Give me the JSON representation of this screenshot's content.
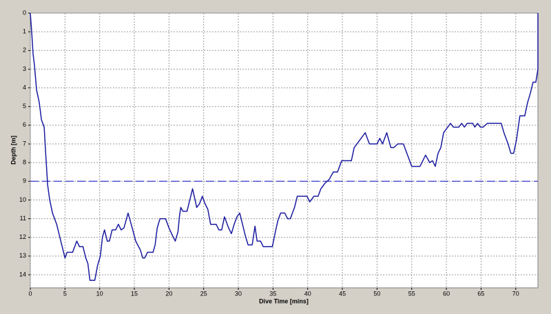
{
  "chart_data": {
    "type": "line",
    "xlabel": "Dive Time [mins]",
    "ylabel": "Depth [m]",
    "color": "#1a1aa0",
    "grid": true,
    "y_inverted": true,
    "reference_line": {
      "value": 9,
      "color": "#3a3ad0"
    },
    "xlim": [
      0,
      73.2
    ],
    "xticks": [
      0,
      5,
      10,
      15,
      20,
      25,
      30,
      35,
      40,
      45,
      50,
      55,
      60,
      65,
      70
    ],
    "ylim": [
      0,
      14.7
    ],
    "yticks": [
      0,
      1,
      2,
      3,
      4,
      5,
      6,
      7,
      8,
      9,
      10,
      11,
      12,
      13,
      14
    ],
    "x": [
      0,
      0.2,
      0.4,
      0.6,
      0.9,
      1.3,
      1.6,
      2.0,
      2.2,
      2.5,
      2.8,
      3.2,
      3.8,
      4.4,
      5.0,
      5.3,
      6.1,
      6.7,
      7.1,
      7.6,
      8.0,
      8.3,
      8.6,
      9.3,
      9.7,
      10.1,
      10.4,
      10.7,
      11.1,
      11.4,
      11.8,
      12.3,
      12.7,
      13.1,
      13.5,
      14.1,
      14.7,
      15.2,
      15.9,
      16.2,
      16.5,
      16.9,
      17.7,
      18.0,
      18.3,
      18.7,
      19.5,
      20.0,
      20.5,
      20.9,
      21.3,
      21.5,
      21.7,
      22.0,
      22.6,
      23.0,
      23.4,
      24.0,
      24.4,
      24.8,
      25.2,
      25.6,
      26.0,
      26.8,
      27.2,
      27.6,
      28.0,
      28.6,
      29.0,
      29.4,
      29.8,
      30.2,
      30.6,
      31.0,
      31.4,
      32.0,
      32.4,
      32.7,
      33.2,
      33.6,
      34.9,
      35.4,
      35.7,
      36.1,
      36.7,
      37.1,
      37.5,
      38.1,
      38.5,
      39.9,
      40.3,
      40.9,
      41.5,
      41.9,
      42.5,
      43.1,
      43.7,
      44.3,
      44.9,
      46.3,
      46.7,
      47.3,
      47.7,
      48.3,
      48.9,
      50.0,
      50.4,
      50.8,
      51.4,
      52.0,
      52.4,
      53.0,
      53.8,
      54.4,
      55.0,
      56.2,
      57.0,
      57.6,
      58.0,
      58.4,
      58.8,
      59.2,
      59.6,
      60.2,
      60.6,
      61.0,
      61.8,
      62.2,
      62.6,
      63.0,
      63.8,
      64.1,
      64.5,
      64.9,
      65.3,
      65.9,
      67.9,
      68.3,
      68.9,
      69.3,
      69.7,
      70.1,
      70.6,
      71.3,
      71.7,
      72.1,
      72.5,
      72.9,
      73.2,
      73.2
    ],
    "values": [
      0,
      1,
      2.2,
      2.8,
      4.1,
      4.8,
      5.7,
      6.1,
      7.4,
      9.2,
      10,
      10.7,
      11.3,
      12.2,
      13.1,
      12.8,
      12.8,
      12.2,
      12.5,
      12.5,
      13.1,
      13.4,
      14.3,
      14.3,
      13.5,
      13.0,
      12.0,
      11.6,
      12.2,
      12.2,
      11.6,
      11.6,
      11.3,
      11.6,
      11.5,
      10.7,
      11.5,
      12.2,
      12.7,
      13.1,
      13.1,
      12.8,
      12.8,
      12.4,
      11.5,
      11.0,
      11.0,
      11.5,
      11.9,
      12.2,
      11.7,
      10.9,
      10.4,
      10.6,
      10.6,
      10.0,
      9.4,
      10.4,
      10.2,
      9.8,
      10.2,
      10.5,
      11.3,
      11.3,
      11.6,
      11.6,
      10.9,
      11.5,
      11.8,
      11.3,
      10.9,
      10.7,
      11.3,
      11.9,
      12.4,
      12.4,
      11.4,
      12.2,
      12.2,
      12.5,
      12.5,
      11.6,
      11.1,
      10.7,
      10.7,
      11.0,
      11.0,
      10.4,
      9.8,
      9.8,
      10.1,
      9.8,
      9.8,
      9.4,
      9.1,
      8.9,
      8.5,
      8.5,
      7.9,
      7.9,
      7.2,
      6.9,
      6.7,
      6.4,
      7.0,
      7.0,
      6.7,
      7.0,
      6.4,
      7.2,
      7.2,
      7.0,
      7.0,
      7.6,
      8.2,
      8.2,
      7.6,
      8.0,
      7.9,
      8.2,
      7.5,
      7.2,
      6.4,
      6.1,
      5.9,
      6.1,
      6.1,
      5.9,
      6.1,
      5.9,
      5.9,
      6.1,
      5.9,
      6.1,
      6.1,
      5.9,
      5.9,
      6.4,
      7.0,
      7.5,
      7.5,
      6.8,
      5.5,
      5.5,
      4.8,
      4.3,
      3.7,
      3.7,
      3.0,
      0
    ]
  }
}
